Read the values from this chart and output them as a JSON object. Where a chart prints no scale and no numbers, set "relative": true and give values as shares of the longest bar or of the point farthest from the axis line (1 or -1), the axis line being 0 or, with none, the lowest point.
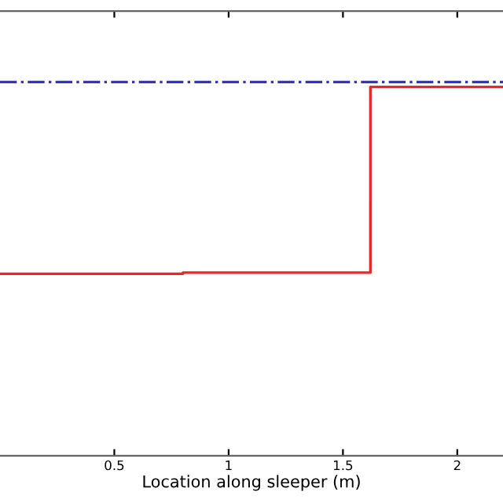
{
  "chart_data": {
    "type": "step",
    "xlabel": "Location along sleeper (m)",
    "relative": true,
    "xlim": [
      0,
      2.2
    ],
    "xticks": [
      0.5,
      1,
      1.5,
      2
    ],
    "grid": false,
    "legend": false,
    "series": [
      {
        "color": "#e8272a",
        "x": [
          0,
          0.8,
          1.62,
          2.2
        ],
        "values": [
          0.487,
          0.49,
          0.987,
          0.987
        ],
        "line_style": "solid"
      },
      {
        "type": "line",
        "color": "#3333cc",
        "x": [
          0,
          2.2
        ],
        "values": [
          1,
          1
        ],
        "line_style": "dashdot"
      }
    ]
  }
}
